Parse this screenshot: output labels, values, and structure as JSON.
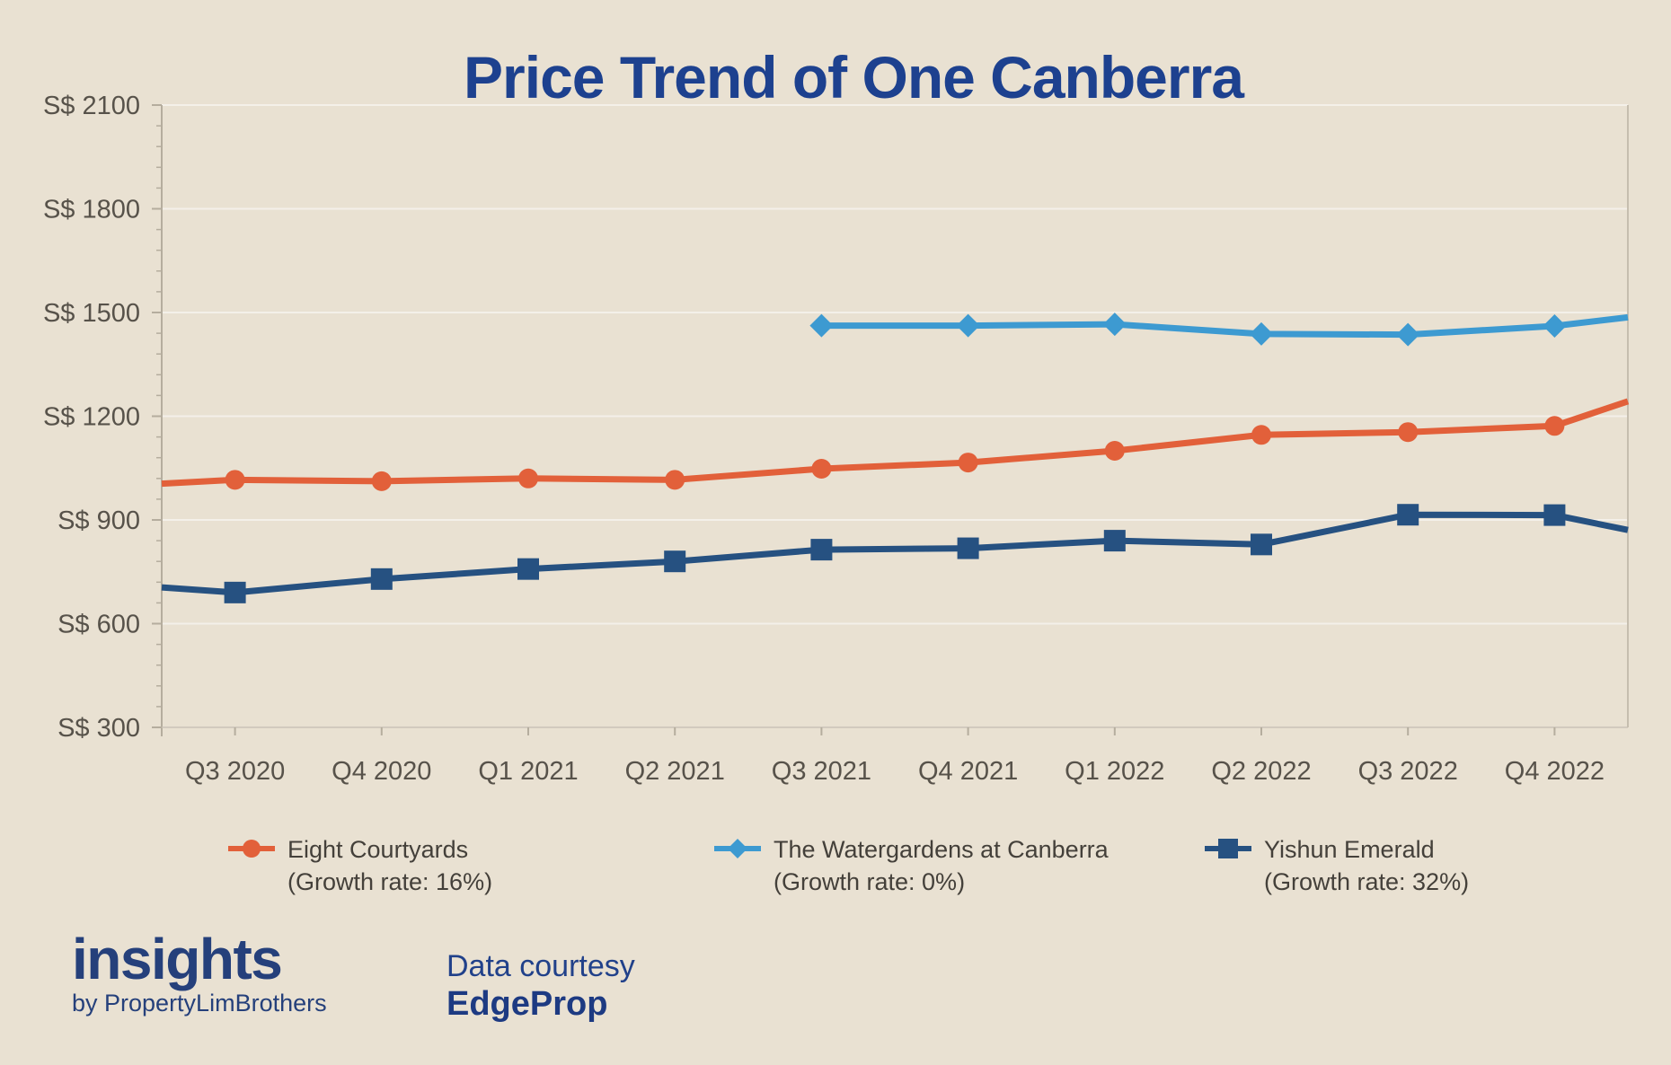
{
  "title": "Price Trend of One Canberra",
  "chart_data": {
    "type": "line",
    "title": "Price Trend of One Canberra",
    "currency_prefix": "S$",
    "categories": [
      "Q3 2020",
      "Q4 2020",
      "Q1 2021",
      "Q2 2021",
      "Q3 2021",
      "Q4 2021",
      "Q1 2022",
      "Q2 2022",
      "Q3 2022",
      "Q4 2022"
    ],
    "y_axis": {
      "min": 300,
      "max": 2100,
      "tick_step": 300,
      "minor_tick_step": 60,
      "tick_labels": [
        "S$ 300",
        "S$ 600",
        "S$ 900",
        "S$ 1200",
        "S$ 1500",
        "S$ 1800",
        "S$ 2100"
      ]
    },
    "grid": "horizontal-major",
    "legend_position": "bottom",
    "series": [
      {
        "name": "Eight Courtyards",
        "growth_label": "(Growth rate: 16%)",
        "growth_rate_pct": 16,
        "color": "#e2603a",
        "marker": "circle",
        "edge_start": 1005,
        "values": [
          1016,
          1012,
          1020,
          1016,
          1048,
          1066,
          1100,
          1146,
          1154,
          1172
        ],
        "edge_end": 1243
      },
      {
        "name": "The Watergardens at Canberra",
        "growth_label": "(Growth rate: 0%)",
        "growth_rate_pct": 0,
        "color": "#3d9ad1",
        "marker": "diamond",
        "edge_start": null,
        "values": [
          null,
          null,
          null,
          null,
          1462,
          1462,
          1466,
          1438,
          1436,
          1461
        ],
        "edge_end": 1486
      },
      {
        "name": "Yishun Emerald",
        "growth_label": "(Growth rate: 32%)",
        "growth_rate_pct": 32,
        "color": "#265181",
        "marker": "square",
        "edge_start": 705,
        "values": [
          690,
          729,
          758,
          780,
          814,
          818,
          840,
          829,
          915,
          914
        ],
        "edge_end": 871
      }
    ]
  },
  "footer": {
    "logo_text": "insights",
    "logo_subtext": "by PropertyLimBrothers",
    "credit_line1": "Data courtesy",
    "credit_line2": "EdgeProp"
  },
  "colors": {
    "background": "#e9e1d2",
    "title": "#1d418f",
    "axis_line": "#b5ad9e",
    "gridline": "rgba(255,255,255,0.5)",
    "tick_label": "#57524a",
    "legend_text": "#44403a",
    "footer_navy": "#25407b"
  }
}
